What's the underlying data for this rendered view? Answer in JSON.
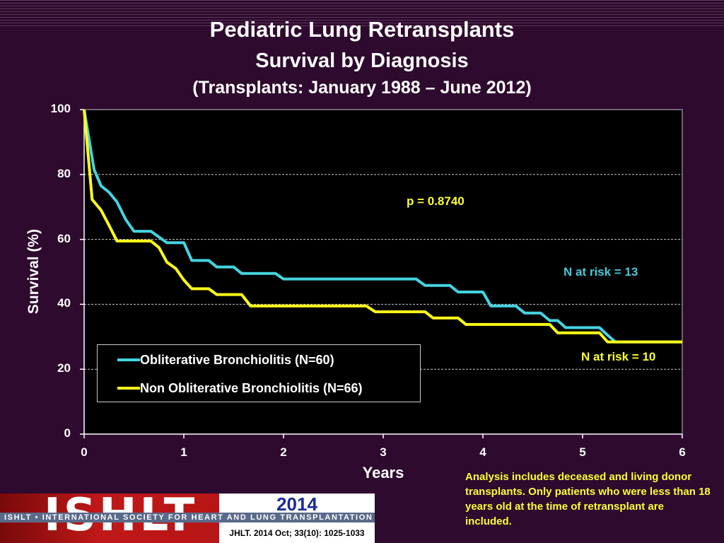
{
  "title": "Pediatric Lung Retransplants",
  "subtitle": "Survival by Diagnosis",
  "subtitle2": "(Transplants: January 1988 – June 2012)",
  "chart_data": {
    "type": "line",
    "xlabel": "Years",
    "ylabel": "Survival (%)",
    "xlim": [
      0,
      6
    ],
    "ylim": [
      0,
      100
    ],
    "xticks": [
      "0",
      "1",
      "2",
      "3",
      "4",
      "5",
      "6"
    ],
    "yticks": [
      "0",
      "20",
      "40",
      "60",
      "80",
      "100"
    ],
    "grid": "horizontal dashed",
    "series": [
      {
        "name": "Obliterative Bronchiolitis (N=60)",
        "color": "#44d4e0",
        "x": [
          0,
          0.1,
          0.17,
          0.25,
          0.33,
          0.42,
          0.5,
          0.67,
          0.83,
          1.0,
          1.08,
          1.25,
          1.33,
          1.5,
          1.58,
          1.75,
          1.83,
          1.92,
          2.0,
          2.25,
          3.17,
          3.33,
          3.42,
          3.67,
          3.75,
          4.0,
          4.08,
          4.33,
          4.42,
          4.58,
          4.67,
          4.75,
          4.83,
          5.17,
          5.25,
          5.33,
          6.0
        ],
        "y": [
          100,
          81.5,
          76.5,
          74.5,
          71.5,
          66,
          62.5,
          62.5,
          59,
          59,
          53.5,
          53.5,
          51.5,
          51.5,
          49.5,
          49.5,
          49.5,
          49.5,
          47.8,
          47.8,
          47.8,
          47.8,
          45.8,
          45.8,
          43.8,
          43.8,
          39.5,
          39.5,
          37.3,
          37.3,
          35,
          35,
          32.8,
          32.8,
          30.5,
          28.4,
          28.4
        ]
      },
      {
        "name": "Non Obliterative Bronchiolitis (N=66)",
        "color": "#ffff1a",
        "x": [
          0,
          0.08,
          0.17,
          0.25,
          0.33,
          0.5,
          0.67,
          0.75,
          0.83,
          0.92,
          1.0,
          1.08,
          1.25,
          1.33,
          1.58,
          1.67,
          2.0,
          2.83,
          2.92,
          3.17,
          3.42,
          3.5,
          3.75,
          3.83,
          4.0,
          4.5,
          4.67,
          4.75,
          5.0,
          5.17,
          5.25,
          6.0
        ],
        "y": [
          100,
          72.3,
          69,
          64.3,
          59.5,
          59.5,
          59.5,
          57.5,
          53,
          51,
          47.5,
          44.8,
          44.8,
          43,
          43,
          39.5,
          39.5,
          39.5,
          37.7,
          37.7,
          37.7,
          35.8,
          35.8,
          33.8,
          33.8,
          33.8,
          33.8,
          31.2,
          31.2,
          31.2,
          28.4,
          28.4
        ]
      }
    ],
    "annotations": {
      "p_value": "p = 0.8740",
      "n_risk_ob": "N at risk = 13",
      "n_risk_non_ob": "N at risk = 10"
    },
    "legend_placement": "bottom-left"
  },
  "note": "Analysis includes deceased and living donor transplants. Only patients who were less than 18 years old at the time of retransplant are included.",
  "footer": {
    "logo_text": "ISHLT",
    "year": "2014",
    "society": "ISHLT • INTERNATIONAL SOCIETY FOR HEART AND LUNG TRANSPLANTATION",
    "citation": "JHLT. 2014 Oct; 33(10): 1025-1033"
  }
}
